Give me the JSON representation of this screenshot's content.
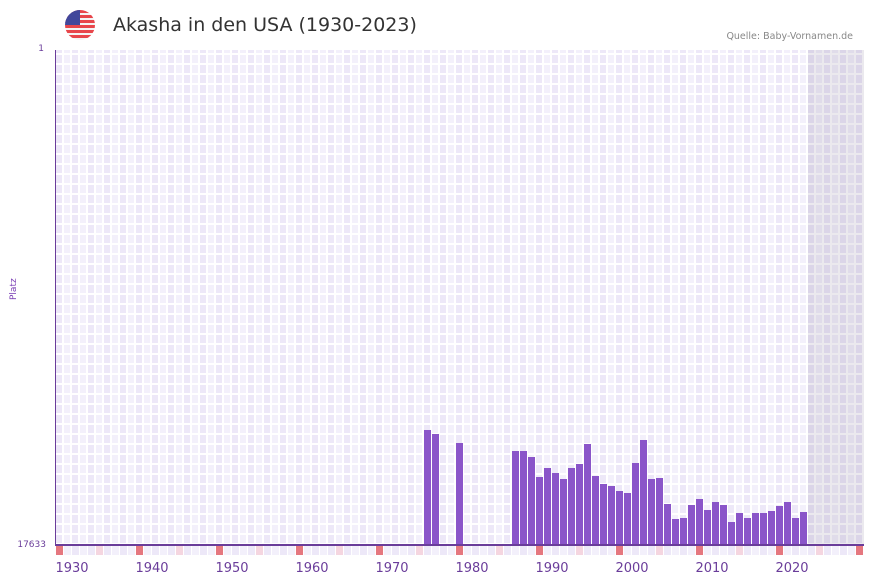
{
  "header": {
    "flag_icon": "us-flag-icon",
    "title": "Akasha in den USA (1930-2023)",
    "source": "Quelle: Baby-Vornamen.de"
  },
  "colors": {
    "bar": "#8a55c9",
    "axis": "#6a3d9a",
    "grid_a": "#ede8f8",
    "grid_b": "#f3f0fb",
    "marker_decade": "#e5777f",
    "marker_half": "#f5d6e0"
  },
  "chart_data": {
    "type": "bar",
    "title": "Akasha in den USA (1930-2023)",
    "xlabel": "",
    "ylabel": "Platz",
    "y_inverted": true,
    "ylim": [
      17633,
      1
    ],
    "yticks": [
      "1",
      "17633"
    ],
    "xlim": [
      1928,
      2028
    ],
    "xticks": [
      "1930",
      "1940",
      "1950",
      "1960",
      "1970",
      "1980",
      "1990",
      "2000",
      "2010",
      "2020"
    ],
    "grid": true,
    "legend": null,
    "shaded_future_from": 2022,
    "x": [
      1974,
      1975,
      1978,
      1985,
      1986,
      1987,
      1988,
      1989,
      1990,
      1991,
      1992,
      1993,
      1994,
      1995,
      1996,
      1997,
      1998,
      1999,
      2000,
      2001,
      2002,
      2003,
      2004,
      2005,
      2006,
      2007,
      2008,
      2009,
      2010,
      2011,
      2012,
      2013,
      2014,
      2015,
      2016,
      2017,
      2018,
      2019,
      2020,
      2021
    ],
    "values": [
      13537,
      13680,
      14000,
      14285,
      14285,
      14499,
      15211,
      14891,
      15069,
      15283,
      14891,
      14748,
      14036,
      15176,
      15461,
      15532,
      15710,
      15781,
      14713,
      13893,
      15283,
      15247,
      16173,
      16708,
      16672,
      16209,
      15995,
      16387,
      16102,
      16209,
      16814,
      16494,
      16672,
      16494,
      16494,
      16422,
      16244,
      16102,
      16672,
      16458
    ]
  }
}
